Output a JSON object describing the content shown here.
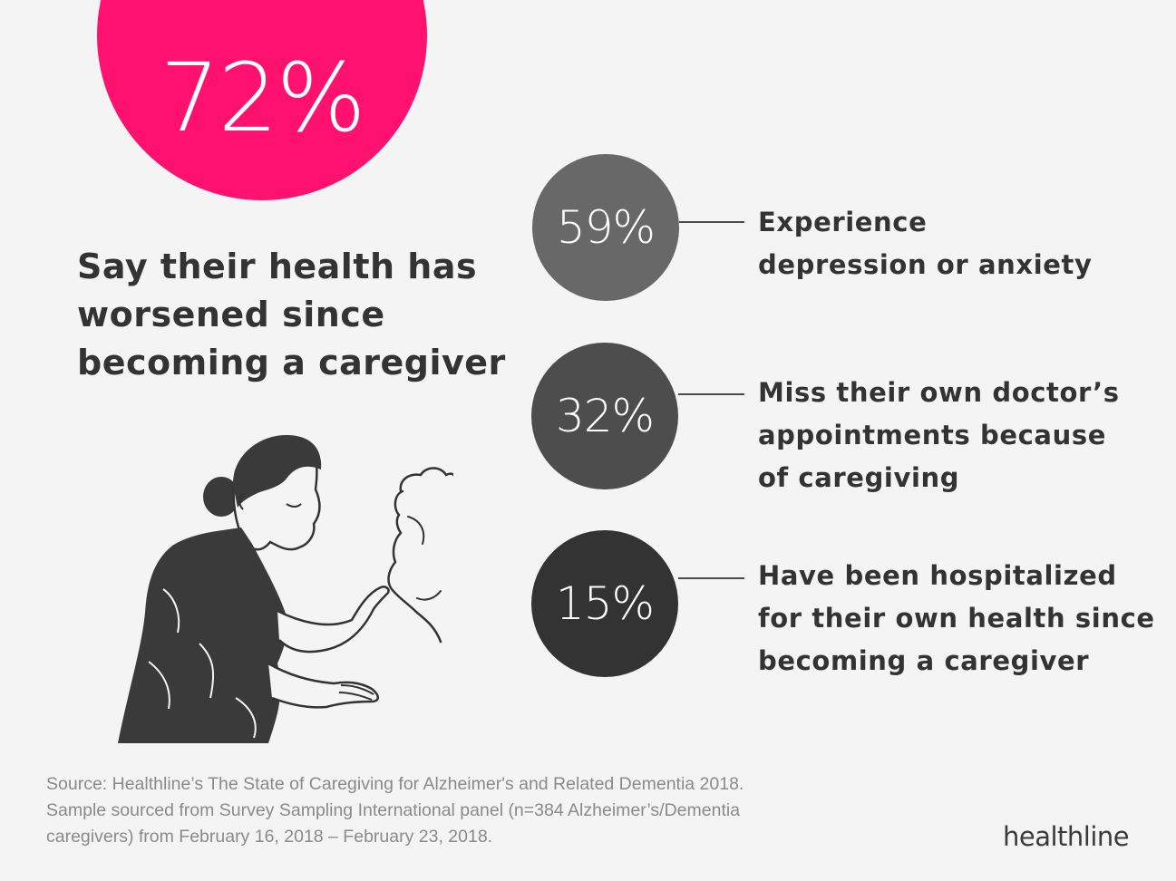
{
  "main_stat": {
    "percent": "72%",
    "headline_lines": [
      "Say their health has",
      "worsened since",
      "becoming a caregiver"
    ]
  },
  "stats": [
    {
      "percent": "59%",
      "label_lines": [
        "Experience",
        "depression or anxiety"
      ],
      "color": "#686868"
    },
    {
      "percent": "32%",
      "label_lines": [
        "Miss their own doctor’s",
        "appointments because",
        "of caregiving"
      ],
      "color": "#4d4d4d"
    },
    {
      "percent": "15%",
      "label_lines": [
        "Have been hospitalized",
        "for their own health since",
        "becoming a caregiver"
      ],
      "color": "#333333"
    }
  ],
  "source_lines": [
    "Source: Healthline’s The State of Caregiving for Alzheimer's and Related Dementia 2018.",
    "Sample sourced from Survey Sampling International panel (n=384 Alzheimer’s/Dementia",
    "caregivers) from February 16, 2018 – February 23, 2018."
  ],
  "logo": {
    "text": "healthline"
  },
  "colors": {
    "accent": "#ff126f",
    "text": "#333333",
    "background": "#f4f4f4",
    "source_text": "#8a8a8a"
  },
  "illustration": {
    "icon": "caregiver-woman-illustration"
  }
}
